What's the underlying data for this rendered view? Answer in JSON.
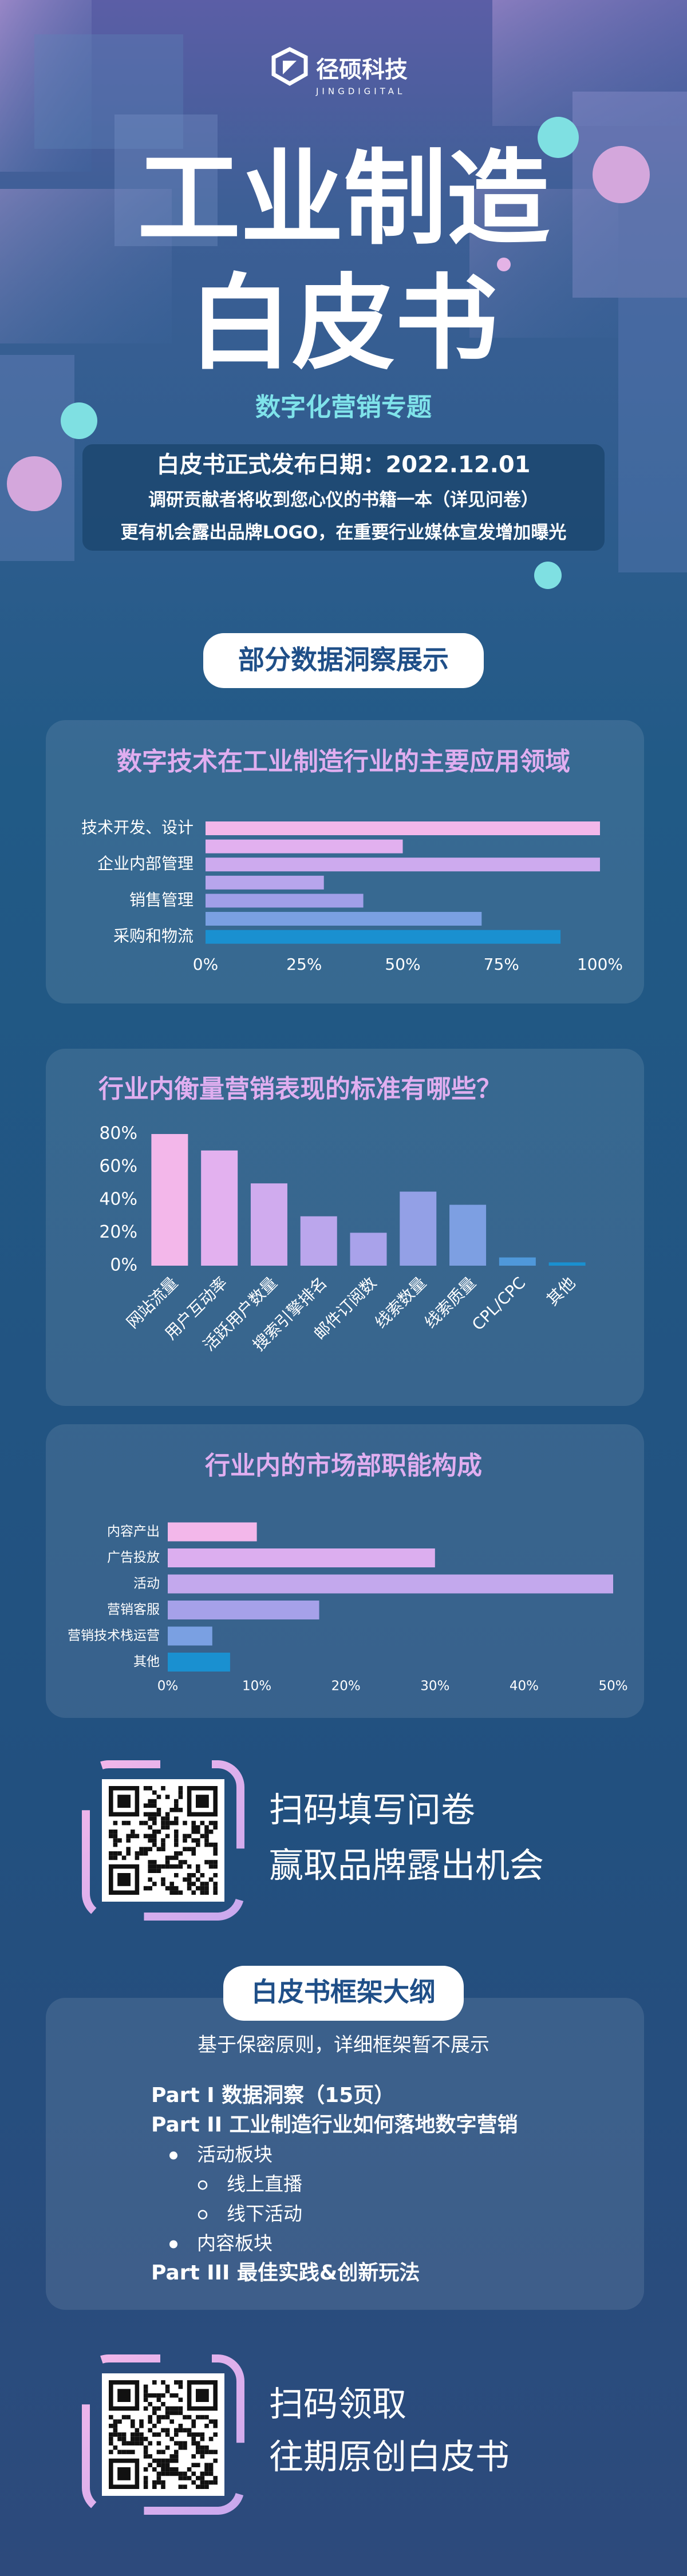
{
  "header": {
    "logo_cn": "径硕科技",
    "logo_en": "JINGDIGITAL",
    "title_line1": "工业制造",
    "title_line2": "白皮书",
    "subtitle": "数字化营销专题",
    "info": [
      "白皮书正式发布日期：2022.12.01",
      "调研贡献者将收到您心仪的书籍一本（详见问卷）",
      "更有机会露出品牌LOGO，在重要行业媒体宣发增加曝光"
    ]
  },
  "section_label": "部分数据洞察展示",
  "chart_data": [
    {
      "type": "bar",
      "orientation": "horizontal",
      "title": "数字技术在工业制造行业的主要应用领域",
      "categories": [
        "技术开发、设计",
        null,
        "企业内部管理",
        null,
        "销售管理",
        null,
        "采购和物流"
      ],
      "values": [
        100,
        50,
        100,
        30,
        40,
        70,
        90
      ],
      "colors": [
        "#f3b7ea",
        "#e2b0ef",
        "#cdaaee",
        "#b7a5ec",
        "#a19fe8",
        "#7aa0e2",
        "#1a90d0"
      ],
      "xlim": [
        0,
        100
      ],
      "xticks": [
        {
          "value": 0,
          "label": "0%"
        },
        {
          "value": 25,
          "label": "25%"
        },
        {
          "value": 50,
          "label": "50%"
        },
        {
          "value": 75,
          "label": "75%"
        },
        {
          "value": 100,
          "label": "100%"
        }
      ]
    },
    {
      "type": "bar",
      "orientation": "vertical",
      "title": "行业内衡量营销表现的标准有哪些？",
      "categories": [
        "网站流量",
        "用户互动率",
        "活跃用户数量",
        "搜索引擎排名",
        "邮件订阅数",
        "线索数量",
        "线索质量",
        "CPL/CPC",
        "其他"
      ],
      "values": [
        80,
        70,
        50,
        30,
        20,
        45,
        37,
        5,
        2
      ],
      "colors": [
        "#f3b7ea",
        "#e3b1ef",
        "#d0abee",
        "#bba6ec",
        "#a9a2ea",
        "#93a0e6",
        "#7d9fe2",
        "#4f98da",
        "#1a90d0"
      ],
      "ylim": [
        0,
        80
      ],
      "yticks": [
        {
          "value": 0,
          "label": "0%"
        },
        {
          "value": 20,
          "label": "20%"
        },
        {
          "value": 40,
          "label": "40%"
        },
        {
          "value": 60,
          "label": "60%"
        },
        {
          "value": 80,
          "label": "80%"
        }
      ]
    },
    {
      "type": "bar",
      "orientation": "horizontal",
      "title": "行业内的市场部职能构成",
      "categories": [
        "内容产出",
        "广告投放",
        "活动",
        "营销客服",
        "营销技术栈运营",
        "其他"
      ],
      "values": [
        10,
        30,
        50,
        17,
        5,
        7
      ],
      "colors": [
        "#f3b7ea",
        "#dcaeef",
        "#c3a8ed",
        "#a6a1e9",
        "#7aa0e2",
        "#1a90d0"
      ],
      "xlim": [
        0,
        50
      ],
      "xticks": [
        {
          "value": 0,
          "label": "0%"
        },
        {
          "value": 10,
          "label": "10%"
        },
        {
          "value": 20,
          "label": "20%"
        },
        {
          "value": 30,
          "label": "30%"
        },
        {
          "value": 40,
          "label": "40%"
        },
        {
          "value": 50,
          "label": "50%"
        }
      ]
    }
  ],
  "cta1": [
    "扫码填写问卷",
    "赢取品牌露出机会"
  ],
  "outline": {
    "label": "白皮书框架大纲",
    "note": "基于保密原则，详细框架暂不展示",
    "items": [
      {
        "text": "Part I  数据洞察（15页）",
        "level": 0
      },
      {
        "text": "Part II 工业制造行业如何落地数字营销",
        "level": 0
      },
      {
        "text": "活动板块",
        "level": 1
      },
      {
        "text": "线上直播",
        "level": 2
      },
      {
        "text": "线下活动",
        "level": 2
      },
      {
        "text": "内容板块",
        "level": 1
      },
      {
        "text": "Part III 最佳实践&创新玩法",
        "level": 0
      }
    ]
  },
  "cta2": [
    "扫码领取",
    "往期原创白皮书"
  ]
}
